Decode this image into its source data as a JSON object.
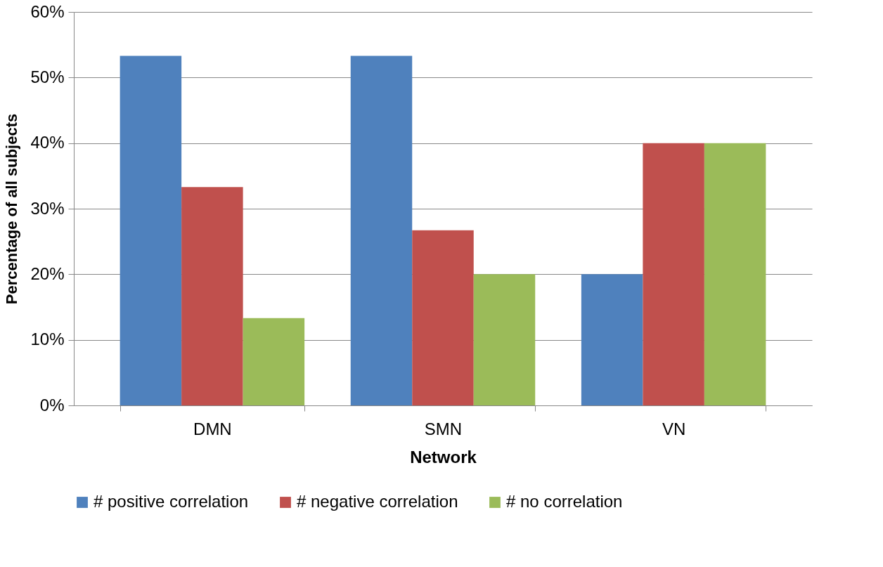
{
  "chart_data": {
    "type": "bar",
    "xlabel": "Network",
    "ylabel": "Percentage of all subjects",
    "categories": [
      "DMN",
      "SMN",
      "VN"
    ],
    "series": [
      {
        "name": "# positive correlation",
        "color": "#4f81bd",
        "values": [
          53.3,
          53.3,
          20
        ]
      },
      {
        "name": "# negative correlation",
        "color": "#c0504d",
        "values": [
          33.3,
          26.7,
          40
        ]
      },
      {
        "name": "# no correlation",
        "color": "#9bbb59",
        "values": [
          13.3,
          20,
          40
        ]
      }
    ],
    "ylim": [
      0,
      60
    ],
    "yticks": [
      {
        "value": 0,
        "label": "0%"
      },
      {
        "value": 10,
        "label": "10%"
      },
      {
        "value": 20,
        "label": "20%"
      },
      {
        "value": 30,
        "label": "30%"
      },
      {
        "value": 40,
        "label": "40%"
      },
      {
        "value": 50,
        "label": "50%"
      },
      {
        "value": 60,
        "label": "60%"
      }
    ],
    "grid": "y",
    "legend": "bottom"
  }
}
